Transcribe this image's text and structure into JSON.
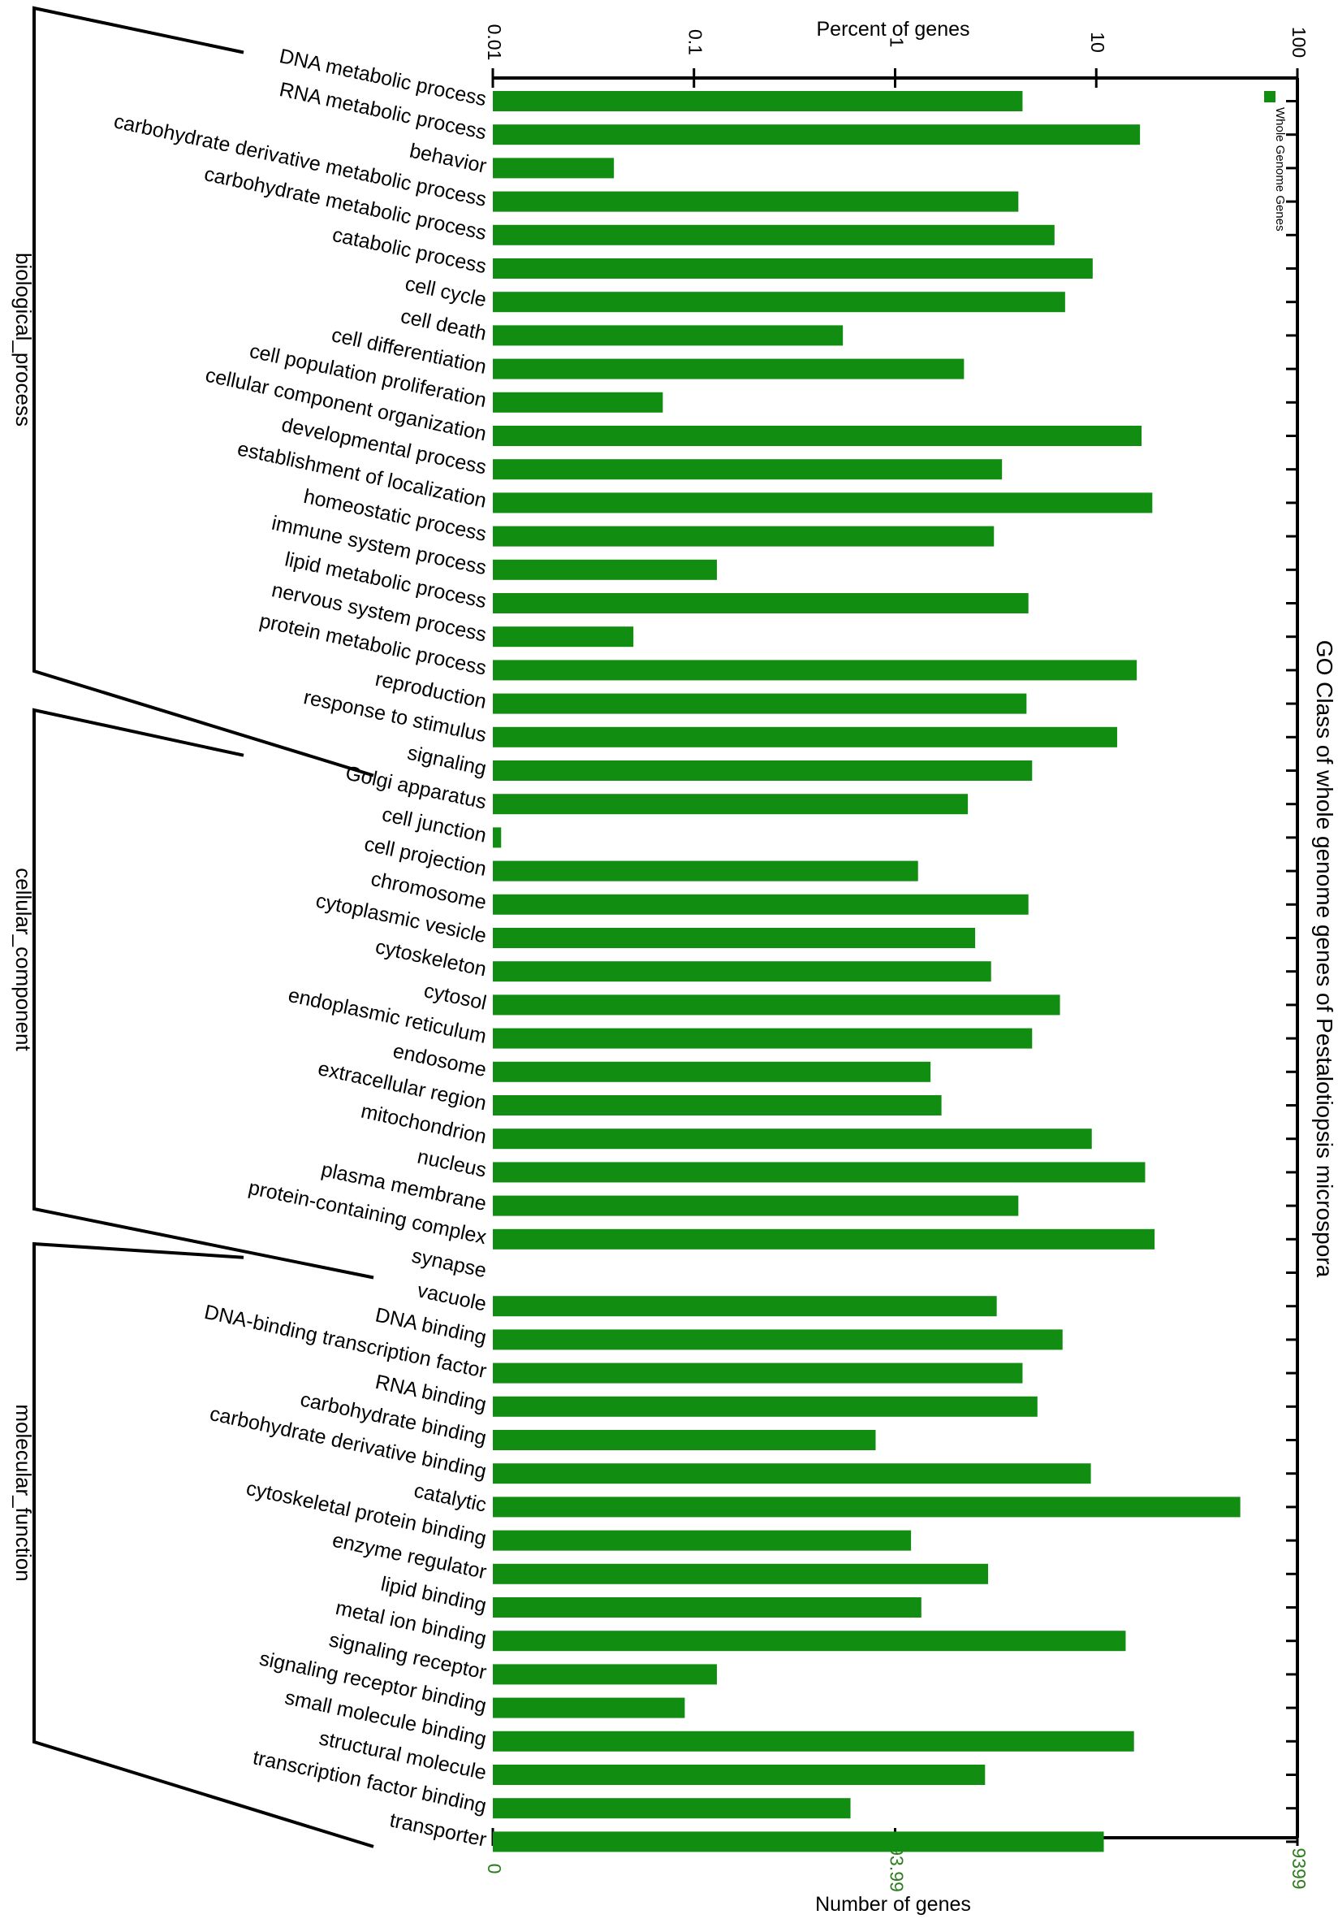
{
  "chart_data": {
    "type": "bar",
    "orientation": "horizontal",
    "title": "GO Class of whole genome genes of Pestalotiopsis microspora",
    "top_axis": {
      "label": "Percent of genes",
      "scale": "log",
      "ticks": [
        "0.01",
        "0.1",
        "1",
        "10",
        "100"
      ],
      "range": [
        0.01,
        100
      ]
    },
    "bottom_axis": {
      "label": "Number of genes",
      "ticks": [
        "0",
        "93.99",
        "9399"
      ]
    },
    "legend": {
      "label": "Whole Genome Genes",
      "placement": "top-right",
      "color": "#118d11"
    },
    "bar_color": "#118d11",
    "groups": [
      {
        "name": "biological_process",
        "first": 0,
        "last": 20
      },
      {
        "name": "cellular_component",
        "first": 21,
        "last": 35
      },
      {
        "name": "molecular_function",
        "first": 36,
        "last": 52
      }
    ],
    "categories": [
      "DNA metabolic process",
      "RNA metabolic process",
      "behavior",
      "carbohydrate derivative metabolic process",
      "carbohydrate metabolic process",
      "catabolic process",
      "cell cycle",
      "cell death",
      "cell differentiation",
      "cell population proliferation",
      "cellular component organization",
      "developmental process",
      "establishment of localization",
      "homeostatic process",
      "immune system process",
      "lipid metabolic process",
      "nervous system process",
      "protein metabolic process",
      "reproduction",
      "response to stimulus",
      "signaling",
      "Golgi apparatus",
      "cell junction",
      "cell projection",
      "chromosome",
      "cytoplasmic vesicle",
      "cytoskeleton",
      "cytosol",
      "endoplasmic reticulum",
      "endosome",
      "extracellular region",
      "mitochondrion",
      "nucleus",
      "plasma membrane",
      "protein-containing complex",
      "synapse",
      "vacuole",
      "DNA binding",
      "DNA-binding transcription factor",
      "RNA binding",
      "carbohydrate binding",
      "carbohydrate derivative binding",
      "catalytic",
      "cytoskeletal protein binding",
      "enzyme regulator",
      "lipid binding",
      "metal ion binding",
      "signaling receptor",
      "signaling receptor binding",
      "small molecule binding",
      "structural molecule",
      "transcription factor binding",
      "transporter"
    ],
    "values": [
      4.3,
      16.5,
      0.04,
      4.1,
      6.2,
      9.6,
      7.0,
      0.55,
      2.2,
      0.07,
      16.8,
      3.4,
      19.0,
      3.1,
      0.13,
      4.6,
      0.05,
      15.9,
      4.5,
      12.7,
      4.8,
      2.3,
      0.011,
      1.3,
      4.6,
      2.5,
      3.0,
      6.6,
      4.8,
      1.5,
      1.7,
      9.5,
      17.5,
      4.1,
      19.5,
      0,
      3.2,
      6.8,
      4.3,
      5.1,
      0.8,
      9.4,
      52.0,
      1.2,
      2.9,
      1.35,
      14.0,
      0.13,
      0.09,
      15.4,
      2.8,
      0.6,
      10.9
    ]
  }
}
